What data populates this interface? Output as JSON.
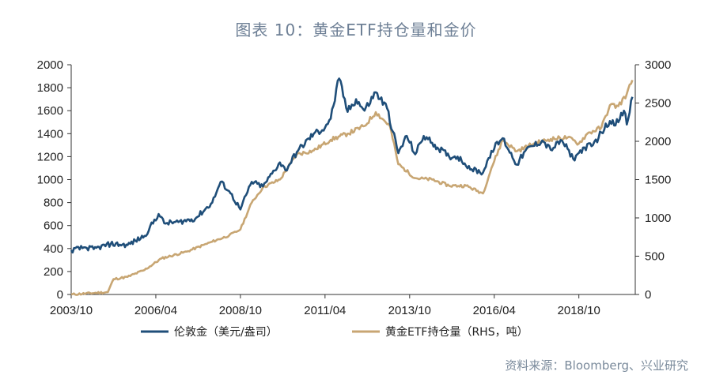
{
  "chart_data": {
    "type": "line",
    "title": "图表 10：黄金ETF持仓量和金价",
    "source": "资料来源：Bloomberg、兴业研究",
    "x_tick_labels": [
      "2003/10",
      "2006/04",
      "2008/10",
      "2011/04",
      "2013/10",
      "2016/04",
      "2018/10"
    ],
    "y_left": {
      "ticks": [
        0,
        200,
        400,
        600,
        800,
        1000,
        1200,
        1400,
        1600,
        1800,
        2000
      ],
      "lim": [
        0,
        2000
      ]
    },
    "y_right": {
      "ticks": [
        0,
        500,
        1000,
        1500,
        2000,
        2500,
        3000
      ],
      "lim": [
        0,
        3000
      ]
    },
    "grid": false,
    "legend_position": "bottom",
    "colors": {
      "gold_price": "#1f4e79",
      "etf_holdings": "#c8a673"
    },
    "series": [
      {
        "name": "伦敦金（美元/盎司）",
        "axis": "left",
        "points": [
          [
            "2003-10",
            385
          ],
          [
            "2004-03",
            410
          ],
          [
            "2004-06",
            395
          ],
          [
            "2004-12",
            440
          ],
          [
            "2005-06",
            430
          ],
          [
            "2005-12",
            510
          ],
          [
            "2006-05",
            700
          ],
          [
            "2006-07",
            620
          ],
          [
            "2006-12",
            630
          ],
          [
            "2007-06",
            660
          ],
          [
            "2007-12",
            800
          ],
          [
            "2008-03",
            980
          ],
          [
            "2008-06",
            900
          ],
          [
            "2008-10",
            740
          ],
          [
            "2009-02",
            980
          ],
          [
            "2009-06",
            940
          ],
          [
            "2009-12",
            1150
          ],
          [
            "2010-02",
            1080
          ],
          [
            "2010-06",
            1240
          ],
          [
            "2010-12",
            1400
          ],
          [
            "2011-03",
            1430
          ],
          [
            "2011-06",
            1530
          ],
          [
            "2011-09",
            1880
          ],
          [
            "2011-12",
            1590
          ],
          [
            "2012-03",
            1700
          ],
          [
            "2012-06",
            1600
          ],
          [
            "2012-10",
            1760
          ],
          [
            "2013-02",
            1620
          ],
          [
            "2013-06",
            1230
          ],
          [
            "2013-09",
            1380
          ],
          [
            "2013-12",
            1220
          ],
          [
            "2014-03",
            1380
          ],
          [
            "2014-06",
            1320
          ],
          [
            "2014-12",
            1200
          ],
          [
            "2015-03",
            1200
          ],
          [
            "2015-08",
            1090
          ],
          [
            "2015-12",
            1060
          ],
          [
            "2016-03",
            1250
          ],
          [
            "2016-07",
            1360
          ],
          [
            "2016-12",
            1130
          ],
          [
            "2017-03",
            1250
          ],
          [
            "2017-09",
            1340
          ],
          [
            "2017-12",
            1260
          ],
          [
            "2018-04",
            1340
          ],
          [
            "2018-08",
            1180
          ],
          [
            "2018-12",
            1280
          ],
          [
            "2019-03",
            1300
          ],
          [
            "2019-06",
            1410
          ],
          [
            "2019-09",
            1510
          ],
          [
            "2019-12",
            1500
          ],
          [
            "2020-02",
            1600
          ],
          [
            "2020-03",
            1480
          ],
          [
            "2020-05",
            1720
          ]
        ]
      },
      {
        "name": "黄金ETF持仓量（RHS，吨）",
        "axis": "right",
        "points": [
          [
            "2003-10",
            0
          ],
          [
            "2004-11",
            30
          ],
          [
            "2005-01",
            200
          ],
          [
            "2005-06",
            230
          ],
          [
            "2005-12",
            320
          ],
          [
            "2006-06",
            470
          ],
          [
            "2007-03",
            560
          ],
          [
            "2007-12",
            690
          ],
          [
            "2008-06",
            770
          ],
          [
            "2008-10",
            850
          ],
          [
            "2009-02",
            1200
          ],
          [
            "2009-06",
            1400
          ],
          [
            "2009-12",
            1500
          ],
          [
            "2010-06",
            1830
          ],
          [
            "2010-12",
            1880
          ],
          [
            "2011-06",
            2020
          ],
          [
            "2011-12",
            2100
          ],
          [
            "2012-06",
            2200
          ],
          [
            "2012-10",
            2380
          ],
          [
            "2013-03",
            2200
          ],
          [
            "2013-06",
            1700
          ],
          [
            "2013-12",
            1520
          ],
          [
            "2014-06",
            1500
          ],
          [
            "2014-12",
            1420
          ],
          [
            "2015-06",
            1420
          ],
          [
            "2015-12",
            1320
          ],
          [
            "2016-03",
            1650
          ],
          [
            "2016-07",
            2020
          ],
          [
            "2016-12",
            1870
          ],
          [
            "2017-06",
            1970
          ],
          [
            "2017-12",
            2030
          ],
          [
            "2018-06",
            2050
          ],
          [
            "2018-10",
            1970
          ],
          [
            "2019-01",
            2100
          ],
          [
            "2019-06",
            2180
          ],
          [
            "2019-09",
            2470
          ],
          [
            "2019-12",
            2460
          ],
          [
            "2020-03",
            2620
          ],
          [
            "2020-05",
            2800
          ]
        ]
      }
    ]
  }
}
